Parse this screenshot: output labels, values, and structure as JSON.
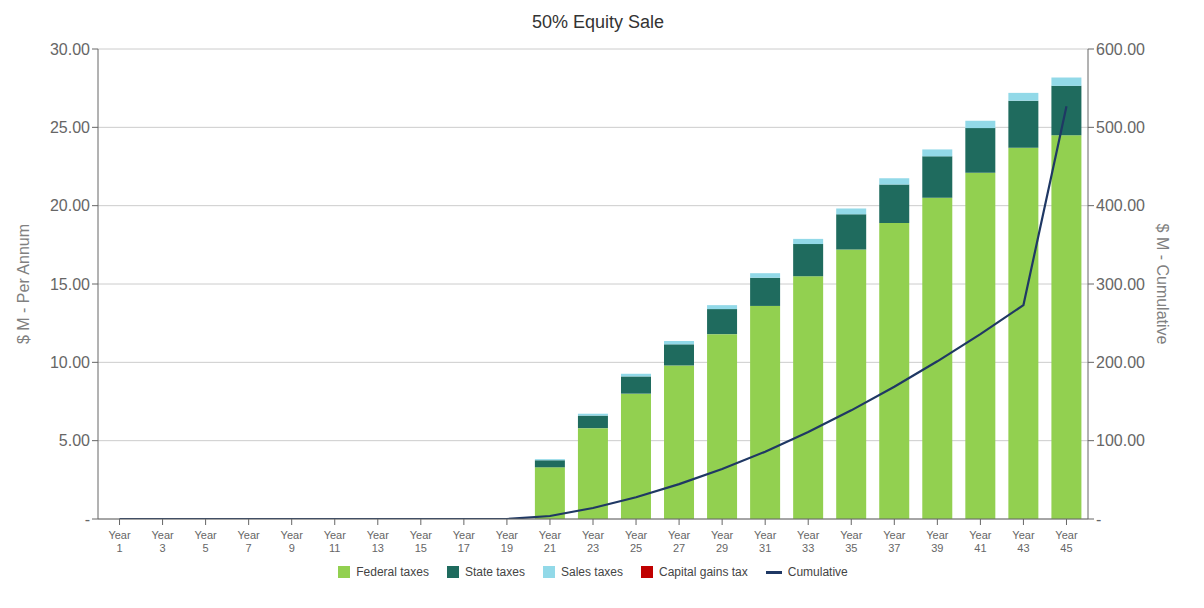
{
  "chart_data": {
    "type": "bar",
    "title": "50% Equity Sale",
    "ylabel": "$ M - Per Annum",
    "y2label": "$ M - Cumulative",
    "stacked": true,
    "grid": true,
    "legend": "bottom",
    "categories": [
      "Year\n1",
      "Year\n3",
      "Year\n5",
      "Year\n7",
      "Year\n9",
      "Year\n11",
      "Year\n13",
      "Year\n15",
      "Year\n17",
      "Year\n19",
      "Year\n21",
      "Year\n23",
      "Year\n25",
      "Year\n27",
      "Year\n29",
      "Year\n31",
      "Year\n33",
      "Year\n35",
      "Year\n37",
      "Year\n39",
      "Year\n41",
      "Year\n43",
      "Year\n45"
    ],
    "ylim": [
      0,
      30
    ],
    "yticks": [
      {
        "value": 0,
        "label": "-"
      },
      {
        "value": 5,
        "label": "5.00"
      },
      {
        "value": 10,
        "label": "10.00"
      },
      {
        "value": 15,
        "label": "15.00"
      },
      {
        "value": 20,
        "label": "20.00"
      },
      {
        "value": 25,
        "label": "25.00"
      },
      {
        "value": 30,
        "label": "30.00"
      }
    ],
    "y2lim": [
      0,
      600
    ],
    "y2ticks": [
      {
        "value": 0,
        "label": "-"
      },
      {
        "value": 100,
        "label": "100.00"
      },
      {
        "value": 200,
        "label": "200.00"
      },
      {
        "value": 300,
        "label": "300.00"
      },
      {
        "value": 400,
        "label": "400.00"
      },
      {
        "value": 500,
        "label": "500.00"
      },
      {
        "value": 600,
        "label": "600.00"
      }
    ],
    "series": [
      {
        "name": "Federal taxes",
        "type": "bar",
        "color": "#92d050",
        "values": [
          0,
          0,
          0,
          0,
          0,
          0,
          0,
          0,
          0,
          0,
          3.3,
          5.8,
          8.0,
          9.8,
          11.8,
          13.6,
          15.5,
          17.2,
          18.9,
          20.5,
          22.1,
          23.7,
          24.5
        ]
      },
      {
        "name": "State taxes",
        "type": "bar",
        "color": "#1f6b5e",
        "values": [
          0,
          0,
          0,
          0,
          0,
          0,
          0,
          0,
          0,
          0,
          0.45,
          0.8,
          1.1,
          1.35,
          1.6,
          1.8,
          2.05,
          2.25,
          2.45,
          2.65,
          2.85,
          3.0,
          3.15
        ]
      },
      {
        "name": "Sales taxes",
        "type": "bar",
        "color": "#92d9e8",
        "values": [
          0,
          0,
          0,
          0,
          0,
          0,
          0,
          0,
          0,
          0,
          0.07,
          0.12,
          0.17,
          0.21,
          0.25,
          0.29,
          0.33,
          0.37,
          0.4,
          0.44,
          0.47,
          0.5,
          0.53
        ]
      },
      {
        "name": "Capital gains tax",
        "type": "bar",
        "color": "#c00000",
        "values": [
          0,
          0,
          0,
          0,
          0,
          0,
          0,
          0,
          0,
          0,
          0,
          0,
          0,
          0,
          0,
          0,
          0,
          0,
          0,
          0,
          0,
          0,
          0
        ]
      },
      {
        "name": "Cumulative",
        "type": "line",
        "axis": "y2",
        "color": "#1f3864",
        "values": [
          0,
          0,
          0,
          0,
          0,
          0,
          0,
          0,
          0,
          0,
          3.82,
          14.0,
          27.7,
          44.5,
          63.8,
          85.9,
          111.0,
          138.7,
          168.8,
          201.3,
          236.1,
          273.1,
          527.0
        ]
      }
    ]
  }
}
